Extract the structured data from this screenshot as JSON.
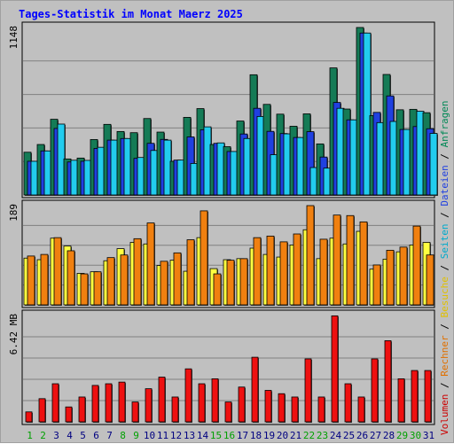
{
  "chart_data": {
    "type": "bar",
    "title": "Tages-Statistik im Monat Maerz 2025",
    "x": [
      "1",
      "2",
      "3",
      "4",
      "5",
      "6",
      "7",
      "8",
      "9",
      "10",
      "11",
      "12",
      "13",
      "14",
      "15",
      "16",
      "17",
      "18",
      "19",
      "20",
      "21",
      "22",
      "23",
      "24",
      "25",
      "26",
      "27",
      "28",
      "29",
      "30",
      "31"
    ],
    "weekend_days": [
      "1",
      "2",
      "8",
      "9",
      "15",
      "16",
      "22",
      "23",
      "29",
      "30"
    ],
    "panels": [
      {
        "id": "top",
        "max_label": "1148",
        "ymax": 1148,
        "series": [
          {
            "name": "Anfragen",
            "color": "#157b56",
            "values": [
              293,
              346,
              519,
              247,
              253,
              380,
              484,
              435,
              427,
              524,
              431,
              231,
              532,
              592,
              346,
              331,
              507,
              824,
              621,
              554,
              471,
              556,
              350,
              871,
              589,
              1148,
              544,
              826,
              584,
              587,
              564
            ]
          },
          {
            "name": "Dateien",
            "color": "#2040e0",
            "values": [
              231,
              302,
              456,
              226,
              231,
              319,
              376,
              387,
              251,
              354,
              381,
              239,
              398,
              447,
              354,
              298,
              418,
              594,
              436,
              421,
              394,
              434,
              260,
              634,
              515,
              1110,
              566,
              679,
              449,
              469,
              454
            ]
          },
          {
            "name": "Seiten",
            "color": "#22ccee",
            "values": [
              231,
              302,
              486,
              238,
              237,
              327,
              376,
              387,
              257,
              305,
              376,
              239,
              216,
              467,
              357,
              298,
              387,
              538,
              276,
              419,
              394,
              188,
              184,
              594,
              515,
              1110,
              496,
              504,
              449,
              574,
              422
            ]
          }
        ],
        "legend_color_keys": [
          "Anfragen",
          "Dateien",
          "Seiten"
        ]
      },
      {
        "id": "middle",
        "max_label": "189",
        "ymax": 189,
        "series": [
          {
            "name": "Besuche",
            "color": "#ffff40",
            "values": [
              89,
              86,
              127,
              112,
              60,
              63,
              84,
              107,
              119,
              116,
              75,
              85,
              64,
              128,
              69,
              86,
              88,
              108,
              96,
              91,
              114,
              143,
              88,
              127,
              116,
              140,
              68,
              87,
              101,
              114,
              119
            ]
          },
          {
            "name": "Rechner",
            "color": "#f08010",
            "values": [
              93,
              96,
              128,
              103,
              59,
              63,
              90,
              95,
              126,
              156,
              83,
              99,
              124,
              179,
              59,
              85,
              88,
              128,
              131,
              120,
              135,
              189,
              125,
              171,
              170,
              158,
              76,
              104,
              110,
              150,
              95
            ]
          }
        ],
        "legend_color_keys": [
          "Besuche",
          "Rechner"
        ]
      },
      {
        "id": "bottom",
        "max_label": "6.42 MB",
        "ymax": 6.42,
        "series": [
          {
            "name": "Volumen",
            "color": "#ee1010",
            "values": [
              0.6,
              1.4,
              2.3,
              0.9,
              1.5,
              2.2,
              2.3,
              2.4,
              1.2,
              2.0,
              2.7,
              1.5,
              3.2,
              2.3,
              2.6,
              1.2,
              2.1,
              3.9,
              1.9,
              1.7,
              1.5,
              3.8,
              1.5,
              6.4,
              2.3,
              1.5,
              3.8,
              4.9,
              2.6,
              3.1,
              3.1
            ]
          }
        ],
        "legend_color_keys": [
          "Volumen"
        ]
      }
    ],
    "legend": {
      "items": [
        {
          "name": "Volumen",
          "color": "#cc0000"
        },
        {
          "name": "Rechner",
          "color": "#e07000"
        },
        {
          "name": "Besuche",
          "color": "#e0c000"
        },
        {
          "name": "Seiten",
          "color": "#00aacc"
        },
        {
          "name": "Dateien",
          "color": "#2040e0"
        },
        {
          "name": "Anfragen",
          "color": "#008855"
        }
      ],
      "separator": "/",
      "placement": "right-vertical"
    },
    "grid": true
  },
  "colors": {
    "title": "#0000ff",
    "weekday_label": "#000080",
    "weekend_label": "#00a000",
    "plot_background": "#c0c0c0",
    "grid_line": "#808080"
  }
}
